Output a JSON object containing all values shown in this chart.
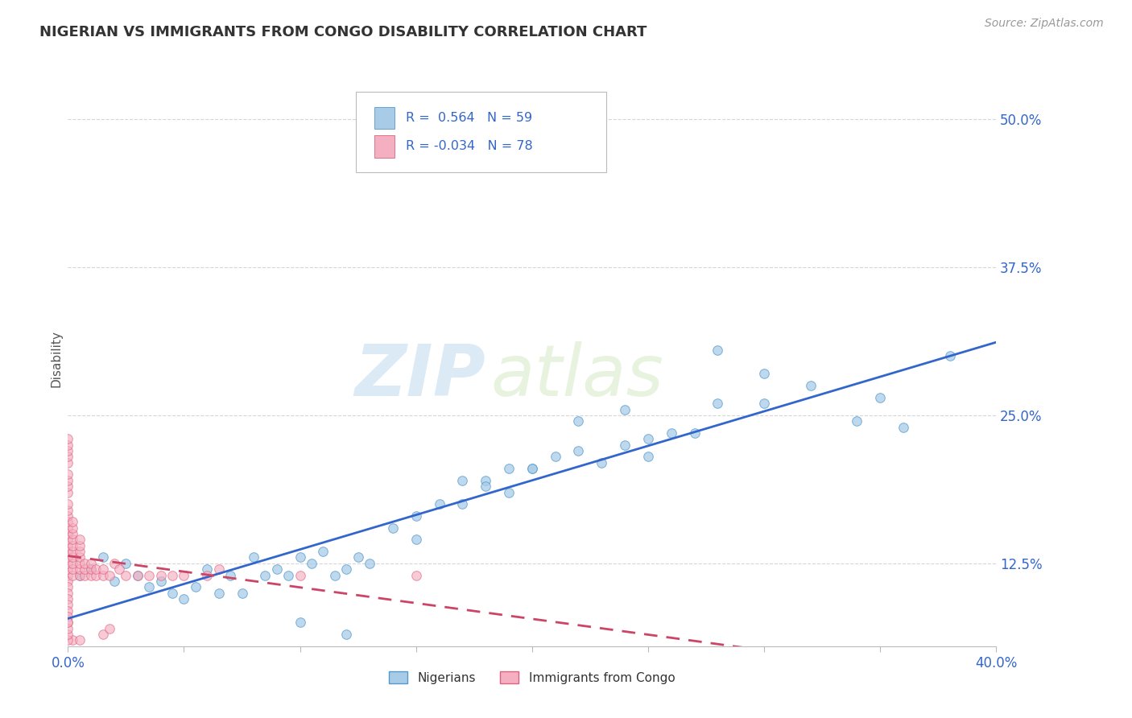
{
  "title": "NIGERIAN VS IMMIGRANTS FROM CONGO DISABILITY CORRELATION CHART",
  "source": "Source: ZipAtlas.com",
  "ylabel": "Disability",
  "yticks": [
    "12.5%",
    "25.0%",
    "37.5%",
    "50.0%"
  ],
  "ytick_vals": [
    0.125,
    0.25,
    0.375,
    0.5
  ],
  "xlim": [
    0.0,
    0.4
  ],
  "ylim": [
    0.055,
    0.54
  ],
  "legend1_R": "0.564",
  "legend1_N": "59",
  "legend2_R": "-0.034",
  "legend2_N": "78",
  "nigerians_color": "#a8cce8",
  "nigerians_edge": "#5599cc",
  "congo_color": "#f4b0c0",
  "congo_edge": "#e06080",
  "line1_color": "#3366cc",
  "line2_color": "#cc4466",
  "watermark_zip": "ZIP",
  "watermark_atlas": "atlas",
  "background_color": "#ffffff",
  "grid_color": "#cccccc",
  "nigerian_x": [
    0.005,
    0.01,
    0.015,
    0.02,
    0.025,
    0.03,
    0.035,
    0.04,
    0.045,
    0.05,
    0.055,
    0.06,
    0.065,
    0.07,
    0.075,
    0.08,
    0.085,
    0.09,
    0.095,
    0.1,
    0.105,
    0.11,
    0.115,
    0.12,
    0.125,
    0.13,
    0.14,
    0.15,
    0.16,
    0.17,
    0.18,
    0.19,
    0.2,
    0.21,
    0.22,
    0.23,
    0.24,
    0.25,
    0.26,
    0.28,
    0.3,
    0.32,
    0.34,
    0.36,
    0.28,
    0.3,
    0.22,
    0.24,
    0.2,
    0.18,
    0.15,
    0.17,
    0.19,
    0.25,
    0.27,
    0.38,
    0.35,
    0.1,
    0.12
  ],
  "nigerian_y": [
    0.115,
    0.12,
    0.13,
    0.11,
    0.125,
    0.115,
    0.105,
    0.11,
    0.1,
    0.095,
    0.105,
    0.12,
    0.1,
    0.115,
    0.1,
    0.13,
    0.115,
    0.12,
    0.115,
    0.13,
    0.125,
    0.135,
    0.115,
    0.12,
    0.13,
    0.125,
    0.155,
    0.165,
    0.175,
    0.195,
    0.195,
    0.205,
    0.205,
    0.215,
    0.22,
    0.21,
    0.225,
    0.23,
    0.235,
    0.26,
    0.26,
    0.275,
    0.245,
    0.24,
    0.305,
    0.285,
    0.245,
    0.255,
    0.205,
    0.19,
    0.145,
    0.175,
    0.185,
    0.215,
    0.235,
    0.3,
    0.265,
    0.075,
    0.065
  ],
  "congo_x": [
    0.0,
    0.0,
    0.0,
    0.0,
    0.0,
    0.0,
    0.0,
    0.0,
    0.0,
    0.0,
    0.0,
    0.0,
    0.0,
    0.0,
    0.0,
    0.0,
    0.0,
    0.0,
    0.0,
    0.0,
    0.0,
    0.0,
    0.0,
    0.0,
    0.0,
    0.0,
    0.0,
    0.0,
    0.0,
    0.0,
    0.002,
    0.002,
    0.002,
    0.002,
    0.002,
    0.002,
    0.002,
    0.002,
    0.002,
    0.002,
    0.005,
    0.005,
    0.005,
    0.005,
    0.005,
    0.005,
    0.005,
    0.007,
    0.007,
    0.007,
    0.01,
    0.01,
    0.01,
    0.012,
    0.012,
    0.015,
    0.015,
    0.018,
    0.02,
    0.022,
    0.025,
    0.03,
    0.035,
    0.04,
    0.045,
    0.05,
    0.06,
    0.065,
    0.1,
    0.15,
    0.015,
    0.018,
    0.002,
    0.0,
    0.005,
    0.0,
    0.0,
    0.0
  ],
  "congo_y": [
    0.115,
    0.12,
    0.125,
    0.13,
    0.135,
    0.14,
    0.145,
    0.15,
    0.155,
    0.16,
    0.165,
    0.17,
    0.175,
    0.185,
    0.19,
    0.195,
    0.2,
    0.21,
    0.215,
    0.22,
    0.225,
    0.23,
    0.11,
    0.105,
    0.1,
    0.095,
    0.09,
    0.085,
    0.08,
    0.075,
    0.115,
    0.12,
    0.125,
    0.13,
    0.135,
    0.14,
    0.145,
    0.15,
    0.155,
    0.16,
    0.115,
    0.12,
    0.125,
    0.13,
    0.135,
    0.14,
    0.145,
    0.115,
    0.12,
    0.125,
    0.115,
    0.12,
    0.125,
    0.115,
    0.12,
    0.115,
    0.12,
    0.115,
    0.125,
    0.12,
    0.115,
    0.115,
    0.115,
    0.115,
    0.115,
    0.115,
    0.115,
    0.12,
    0.115,
    0.115,
    0.065,
    0.07,
    0.06,
    0.06,
    0.06,
    0.065,
    0.07,
    0.075
  ]
}
